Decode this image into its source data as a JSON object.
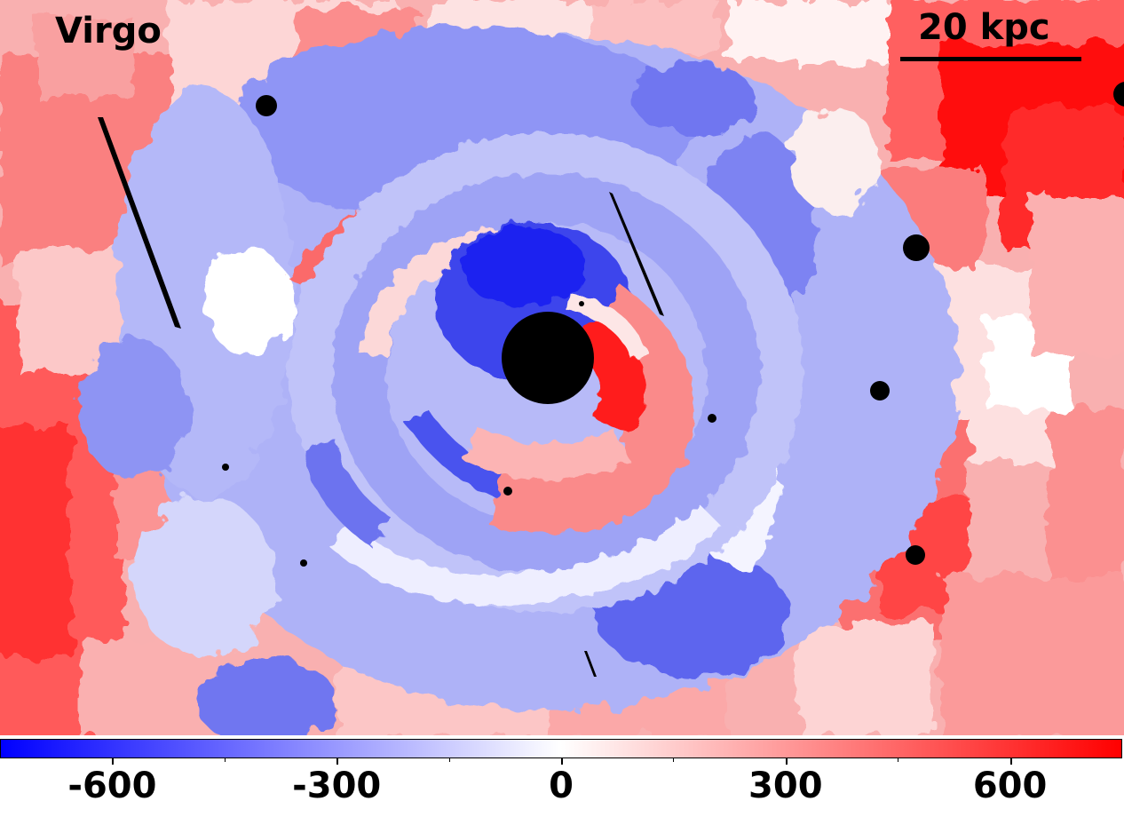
{
  "map": {
    "target_name": "Virgo",
    "scale_bar_label": "20 kpc",
    "colormap": {
      "name": "bwr",
      "low_color": "#0000ff",
      "mid_color": "#ffffff",
      "high_color": "#ff0000"
    },
    "masked_color": "#000000"
  },
  "colorbar": {
    "min": -750,
    "max": 750,
    "major_ticks": [
      -600,
      -300,
      0,
      300,
      600
    ],
    "tick_labels": [
      "-600",
      "-300",
      "0",
      "300",
      "600"
    ],
    "minor_tick_step": 150
  }
}
